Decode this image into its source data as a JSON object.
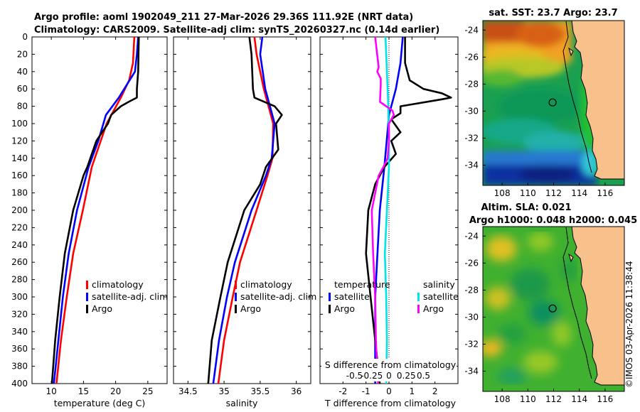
{
  "titles": {
    "line1": "Argo profile: aoml 1902049_211 27-Mar-2026 29.36S 111.92E (NRT data)",
    "line2": "Climatology: CARS2009. Satellite-adj clim: synTS_20260327.nc (0.14d earlier)"
  },
  "depth_ticks": [
    "0",
    "20",
    "40",
    "60",
    "80",
    "100",
    "120",
    "140",
    "160",
    "180",
    "200",
    "220",
    "240",
    "260",
    "280",
    "300",
    "320",
    "340",
    "360",
    "380",
    "400"
  ],
  "colors": {
    "climatology": "#ff0000",
    "satellite": "#0000ff",
    "argo": "#000000",
    "sat_salinity": "#00e5e5",
    "argo_salinity": "#ff00ff"
  },
  "chart_data": [
    {
      "type": "line",
      "title": "",
      "xlabel": "temperature (deg C)",
      "ylabel": "",
      "xlim": [
        7,
        28
      ],
      "ylim": [
        400,
        0
      ],
      "xticks": [
        "10",
        "15",
        "20",
        "25"
      ],
      "legend": [
        "climatology",
        "satellite-adj. clim",
        "Argo"
      ],
      "series": [
        {
          "name": "climatology",
          "depth": [
            0,
            30,
            50,
            70,
            100,
            150,
            200,
            250,
            300,
            350,
            400
          ],
          "values": [
            22.9,
            22.7,
            22.1,
            20.8,
            18.6,
            16.3,
            14.9,
            13.4,
            12.4,
            11.5,
            10.8
          ]
        },
        {
          "name": "satellite-adj. clim",
          "depth": [
            0,
            20,
            40,
            70,
            90,
            120,
            150,
            200,
            250,
            300,
            350,
            400
          ],
          "values": [
            23.5,
            23.3,
            23.0,
            20.5,
            18.5,
            17.3,
            15.8,
            14.0,
            12.7,
            11.8,
            11.1,
            10.4
          ]
        },
        {
          "name": "Argo",
          "depth": [
            0,
            40,
            60,
            70,
            75,
            80,
            90,
            100,
            120,
            150,
            160,
            200,
            250,
            300,
            350,
            400
          ],
          "values": [
            23.6,
            23.5,
            23.3,
            23.3,
            22.0,
            20.8,
            19.3,
            18.8,
            17.0,
            15.6,
            15.0,
            13.4,
            12.1,
            11.3,
            10.6,
            10.1
          ]
        }
      ]
    },
    {
      "type": "line",
      "title": "",
      "xlabel": "salinity",
      "ylabel": "",
      "xlim": [
        34.3,
        36.2
      ],
      "ylim": [
        400,
        0
      ],
      "xticks": [
        "34.5",
        "35",
        "35.5",
        "36"
      ],
      "legend": [
        "climatology",
        "satellite-adj. clim",
        "Argo"
      ],
      "series": [
        {
          "name": "climatology",
          "depth": [
            0,
            20,
            60,
            100,
            140,
            160,
            200,
            260,
            300,
            350,
            400
          ],
          "values": [
            35.42,
            35.45,
            35.55,
            35.68,
            35.67,
            35.6,
            35.45,
            35.22,
            35.12,
            35.0,
            34.92
          ]
        },
        {
          "name": "satellite-adj. clim",
          "depth": [
            0,
            20,
            60,
            100,
            140,
            160,
            200,
            260,
            300,
            350,
            400
          ],
          "values": [
            35.53,
            35.5,
            35.57,
            35.7,
            35.66,
            35.58,
            35.38,
            35.15,
            35.04,
            34.93,
            34.85
          ]
        },
        {
          "name": "Argo",
          "depth": [
            0,
            20,
            60,
            70,
            80,
            90,
            100,
            130,
            150,
            170,
            200,
            260,
            300,
            350,
            400
          ],
          "values": [
            35.35,
            35.38,
            35.4,
            35.42,
            35.7,
            35.8,
            35.72,
            35.75,
            35.58,
            35.5,
            35.28,
            35.05,
            34.95,
            34.83,
            34.78
          ]
        }
      ]
    },
    {
      "type": "line",
      "title": "",
      "xlabel": "T difference from climatology",
      "xlabel_top": "S difference from climatology",
      "ylabel": "",
      "xlim": [
        -3,
        3
      ],
      "ylim": [
        400,
        0
      ],
      "xticks": [
        "-2",
        "-1",
        "0",
        "1",
        "2"
      ],
      "xticks_top": [
        "-0.5",
        "-0.25",
        "0",
        "0.25",
        "0.5"
      ],
      "legend_temperature": {
        "heading": "temperature",
        "items": [
          "satellite",
          "Argo"
        ]
      },
      "legend_salinity": {
        "heading": "salinity",
        "items": [
          "satellite",
          "Argo"
        ]
      },
      "series": [
        {
          "name": "temperature satellite",
          "depth": [
            0,
            30,
            60,
            90,
            120,
            150,
            200,
            250,
            300,
            350,
            400
          ],
          "values": [
            0.6,
            0.5,
            0.3,
            0.0,
            -0.1,
            -0.2,
            -0.4,
            -0.5,
            -0.6,
            -0.6,
            -0.6
          ]
        },
        {
          "name": "temperature Argo",
          "depth": [
            0,
            30,
            50,
            60,
            65,
            70,
            72,
            80,
            88,
            95,
            110,
            120,
            135,
            150,
            170,
            200,
            250,
            300,
            350,
            400
          ],
          "values": [
            0.7,
            0.7,
            0.9,
            1.5,
            2.3,
            2.7,
            2.3,
            0.5,
            0.5,
            0.1,
            0.5,
            0.1,
            0.3,
            -0.2,
            -0.6,
            -0.9,
            -1.0,
            -0.8,
            -0.6,
            -0.4
          ]
        },
        {
          "name": "salinity satellite",
          "depth": [
            0,
            40,
            80,
            120,
            150,
            200,
            250,
            300,
            350,
            400
          ],
          "values": [
            -0.05,
            -0.03,
            -0.01,
            0.0,
            0.0,
            -0.03,
            -0.06,
            -0.04,
            -0.03,
            -0.04
          ]
        },
        {
          "name": "salinity Argo",
          "depth": [
            0,
            35,
            40,
            48,
            55,
            75,
            85,
            90,
            100,
            120,
            140,
            150,
            160,
            200,
            250,
            300,
            350,
            400
          ],
          "values": [
            -0.2,
            -0.15,
            -0.17,
            -0.12,
            -0.12,
            -0.13,
            0.05,
            0.07,
            0.0,
            0.0,
            -0.02,
            -0.08,
            -0.15,
            -0.25,
            -0.23,
            -0.2,
            -0.19,
            -0.16
          ]
        }
      ]
    },
    {
      "type": "heatmap",
      "title": "sat. SST: 23.7 Argo: 23.7",
      "xticks": [
        "108",
        "110",
        "112",
        "114",
        "116"
      ],
      "yticks": [
        "-24",
        "-26",
        "-28",
        "-30",
        "-32",
        "-34"
      ],
      "xlim": [
        106.5,
        117.5
      ],
      "ylim": [
        -35.5,
        -23.3
      ],
      "marker": {
        "lon": 111.92,
        "lat": -29.36
      }
    },
    {
      "type": "heatmap",
      "title_line1": "Altim. SLA: 0.021",
      "title_line2": "Argo h1000: 0.048 h2000: 0.045",
      "xticks": [
        "108",
        "110",
        "112",
        "114",
        "116"
      ],
      "yticks": [
        "-24",
        "-26",
        "-28",
        "-30",
        "-32",
        "-34"
      ],
      "xlim": [
        106.5,
        117.5
      ],
      "ylim": [
        -35.5,
        -23.3
      ],
      "marker": {
        "lon": 111.92,
        "lat": -29.36
      }
    }
  ],
  "copyright": "©IMOS 03-Apr-2026 11:38:44"
}
